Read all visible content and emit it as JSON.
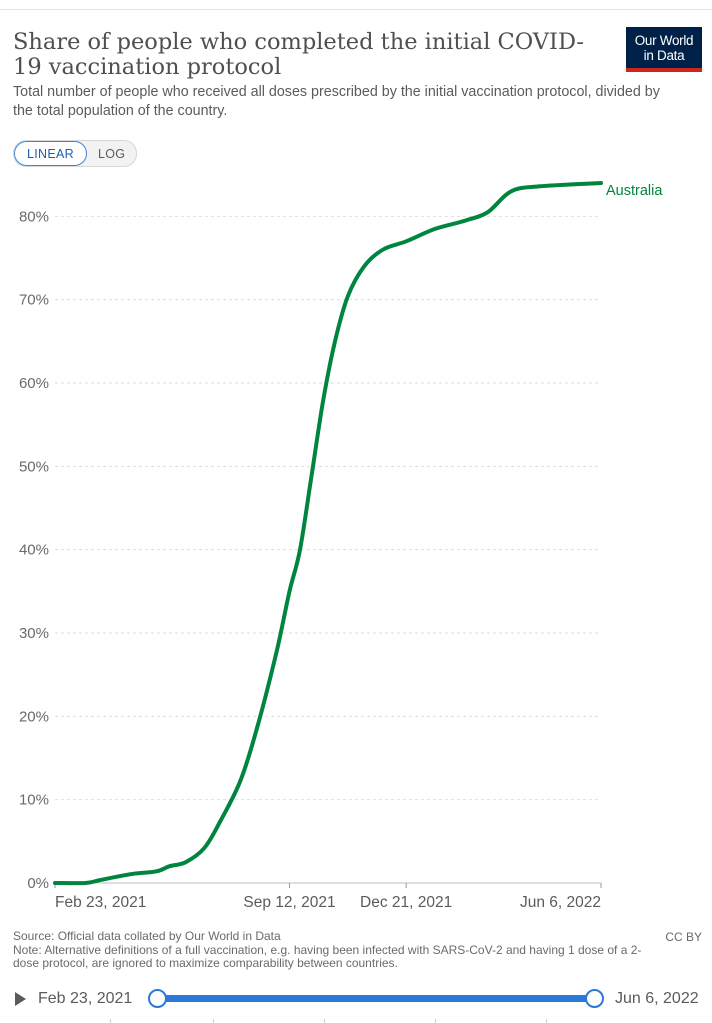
{
  "header": {
    "title": "Share of people who completed the initial COVID-19 vaccination protocol",
    "subtitle": "Total number of people who received all doses prescribed by the initial vaccination protocol, divided by the total population of the country.",
    "logo_line1": "Our World",
    "logo_line2": "in Data",
    "logo_color": "#002147",
    "logo_accent": "#ce261e"
  },
  "controls": {
    "linear_label": "LINEAR",
    "log_label": "LOG",
    "active_scale": "linear"
  },
  "chart_data": {
    "type": "line",
    "title": "Share of people who completed the initial COVID-19 vaccination protocol",
    "x_ticks": [
      "Feb 23, 2021",
      "Sep 12, 2021",
      "Dec 21, 2021",
      "Jun 6, 2022"
    ],
    "y_ticks": [
      "0%",
      "10%",
      "20%",
      "30%",
      "40%",
      "50%",
      "60%",
      "70%",
      "80%"
    ],
    "ylim": [
      0,
      84
    ],
    "xlim": [
      "2021-02-23",
      "2022-06-06"
    ],
    "grid": "horizontal dashed",
    "legend": "end-of-line label",
    "series": [
      {
        "name": "Australia",
        "color": "#00853f",
        "points": [
          [
            "2021-02-23",
            0
          ],
          [
            "2021-03-21",
            0
          ],
          [
            "2021-04-01",
            0.3
          ],
          [
            "2021-04-15",
            0.7
          ],
          [
            "2021-05-01",
            1.1
          ],
          [
            "2021-05-21",
            1.4
          ],
          [
            "2021-06-01",
            2.0
          ],
          [
            "2021-06-15",
            2.5
          ],
          [
            "2021-07-01",
            4.2
          ],
          [
            "2021-07-15",
            7.5
          ],
          [
            "2021-08-01",
            12.3
          ],
          [
            "2021-08-15",
            18.5
          ],
          [
            "2021-09-01",
            27.8
          ],
          [
            "2021-09-12",
            35.0
          ],
          [
            "2021-09-21",
            40.0
          ],
          [
            "2021-10-01",
            49.0
          ],
          [
            "2021-10-11",
            58.0
          ],
          [
            "2021-10-21",
            65.0
          ],
          [
            "2021-11-01",
            70.4
          ],
          [
            "2021-11-15",
            74.0
          ],
          [
            "2021-12-01",
            76.0
          ],
          [
            "2021-12-21",
            77.0
          ],
          [
            "2022-01-15",
            78.5
          ],
          [
            "2022-02-10",
            79.5
          ],
          [
            "2022-03-01",
            80.5
          ],
          [
            "2022-03-21",
            83.0
          ],
          [
            "2022-04-15",
            83.6
          ],
          [
            "2022-06-06",
            84.0
          ]
        ]
      }
    ]
  },
  "footer": {
    "source": "Source: Official data collated by Our World in Data",
    "note": "Note: Alternative definitions of a full vaccination, e.g. having been infected with SARS-CoV-2 and having 1 dose of a 2-dose protocol, are ignored to maximize comparability between countries.",
    "license": "CC BY"
  },
  "timeline": {
    "start_label": "Feb 23, 2021",
    "end_label": "Jun 6, 2022",
    "start_fraction": 0,
    "end_fraction": 1,
    "track_color": "#2a79d8"
  }
}
